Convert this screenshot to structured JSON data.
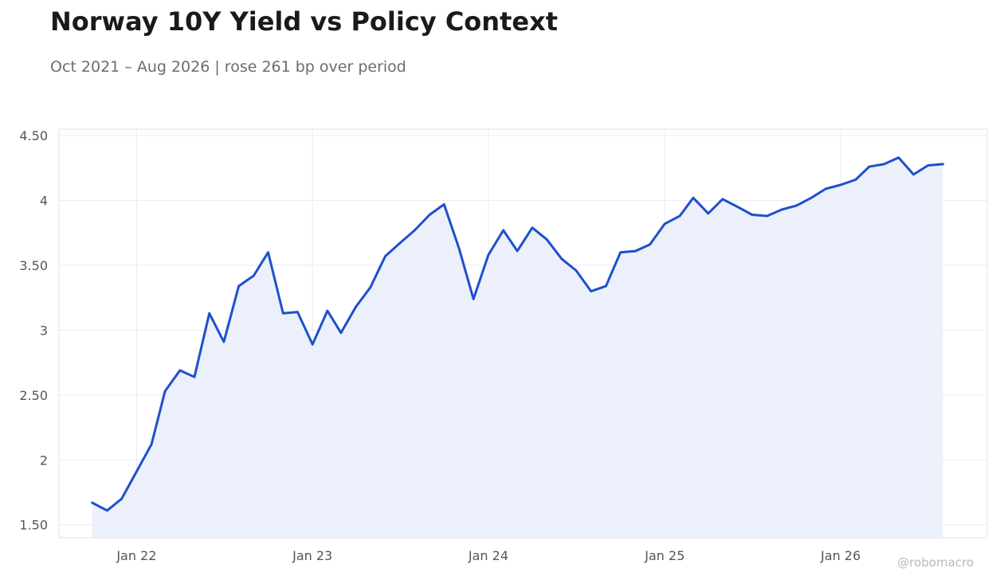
{
  "header": {
    "title": "Norway 10Y Yield vs Policy Context",
    "subtitle": "Oct 2021 – Aug 2026 | rose 261 bp over period"
  },
  "watermark": "@robomacro",
  "colors": {
    "line": "#1f4fcc",
    "fill": "#ebf0fb",
    "grid": "#ebebf0",
    "frame": "#e1e1e6"
  },
  "chart_data": {
    "type": "area",
    "title": "Norway 10Y Yield vs Policy Context",
    "xlabel": "",
    "ylabel": "",
    "ylim": [
      1.4,
      4.55
    ],
    "xlim": [
      "2021-07-24",
      "2026-11-01"
    ],
    "grid": true,
    "legend": "none",
    "yticks": [
      {
        "value": 1.5,
        "label": "1.50"
      },
      {
        "value": 2,
        "label": "2"
      },
      {
        "value": 2.5,
        "label": "2.50"
      },
      {
        "value": 3,
        "label": "3"
      },
      {
        "value": 3.5,
        "label": "3.50"
      },
      {
        "value": 4,
        "label": "4"
      },
      {
        "value": 4.5,
        "label": "4.50"
      }
    ],
    "xticks": [
      {
        "date": "2022-01-01",
        "label": "Jan 22"
      },
      {
        "date": "2023-01-01",
        "label": "Jan 23"
      },
      {
        "date": "2024-01-01",
        "label": "Jan 24"
      },
      {
        "date": "2025-01-01",
        "label": "Jan 25"
      },
      {
        "date": "2026-01-01",
        "label": "Jan 26"
      }
    ],
    "series": [
      {
        "x": [
          "2021-10-01",
          "2021-11-01",
          "2021-12-01",
          "2022-01-01",
          "2022-02-01",
          "2022-03-01",
          "2022-04-01",
          "2022-05-01",
          "2022-06-01",
          "2022-07-01",
          "2022-08-01",
          "2022-09-01",
          "2022-10-01",
          "2022-11-01",
          "2022-12-01",
          "2023-01-01",
          "2023-02-01",
          "2023-03-01",
          "2023-04-01",
          "2023-05-01",
          "2023-06-01",
          "2023-07-01",
          "2023-08-01",
          "2023-09-01",
          "2023-10-01",
          "2023-11-01",
          "2023-12-01",
          "2024-01-01",
          "2024-02-01",
          "2024-03-01",
          "2024-04-01",
          "2024-05-01",
          "2024-06-01",
          "2024-07-01",
          "2024-08-01",
          "2024-09-01",
          "2024-10-01",
          "2024-11-01",
          "2024-12-01",
          "2025-01-01",
          "2025-02-01",
          "2025-03-01",
          "2025-04-01",
          "2025-05-01",
          "2025-06-01",
          "2025-07-01",
          "2025-08-01",
          "2025-09-01",
          "2025-10-01",
          "2025-11-01",
          "2025-12-01",
          "2026-01-01",
          "2026-02-01",
          "2026-03-01",
          "2026-04-01",
          "2026-05-01",
          "2026-06-01",
          "2026-07-01",
          "2026-08-01"
        ],
        "values": [
          1.67,
          1.61,
          1.7,
          1.91,
          2.12,
          2.53,
          2.69,
          2.64,
          3.13,
          2.91,
          3.34,
          3.42,
          3.6,
          3.13,
          3.14,
          2.89,
          3.15,
          2.98,
          3.18,
          3.33,
          3.57,
          3.67,
          3.77,
          3.89,
          3.97,
          3.63,
          3.24,
          3.58,
          3.77,
          3.61,
          3.79,
          3.7,
          3.55,
          3.46,
          3.3,
          3.34,
          3.6,
          3.61,
          3.66,
          3.82,
          3.88,
          4.02,
          3.9,
          4.01,
          3.95,
          3.89,
          3.88,
          3.93,
          3.96,
          4.02,
          4.09,
          4.12,
          4.16,
          4.26,
          4.28,
          4.33,
          4.2,
          4.27,
          4.28
        ]
      }
    ]
  }
}
